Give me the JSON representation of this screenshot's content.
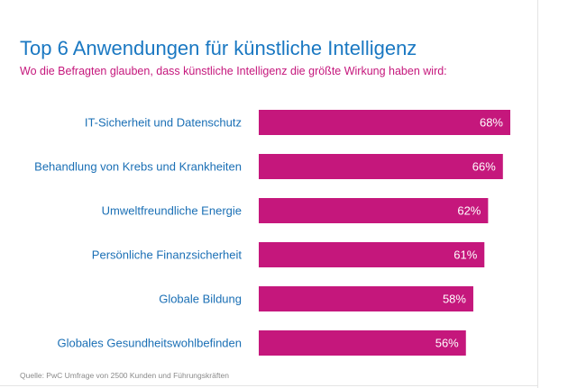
{
  "header": {
    "title": "Top 6 Anwendungen für künstliche Intelligenz",
    "subtitle": "Wo die Befragten glauben, dass künstliche Intelligenz die größte Wirkung haben wird:"
  },
  "footer": {
    "source": "Quelle: PwC Umfrage von 2500 Kunden und Führungskräften"
  },
  "colors": {
    "bar": "#c5177c",
    "category_label": "#1a6fb5",
    "value_label": "#ffffff"
  },
  "chart_data": {
    "type": "bar",
    "orientation": "horizontal",
    "title": "Top 6 Anwendungen für künstliche Intelligenz",
    "subtitle": "Wo die Befragten glauben, dass künstliche Intelligenz die größte Wirkung haben wird:",
    "categories": [
      "IT-Sicherheit und Datenschutz",
      "Behandlung von Krebs und Krankheiten",
      "Umweltfreundliche Energie",
      "Persönliche Finanzsicherheit",
      "Globale Bildung",
      "Globales Gesundheitswohlbefinden"
    ],
    "values": [
      68,
      66,
      62,
      61,
      58,
      56
    ],
    "value_labels": [
      "68%",
      "66%",
      "62%",
      "61%",
      "58%",
      "56%"
    ],
    "unit": "%",
    "xlim": [
      0,
      68
    ],
    "grid": false,
    "legend": "none"
  }
}
